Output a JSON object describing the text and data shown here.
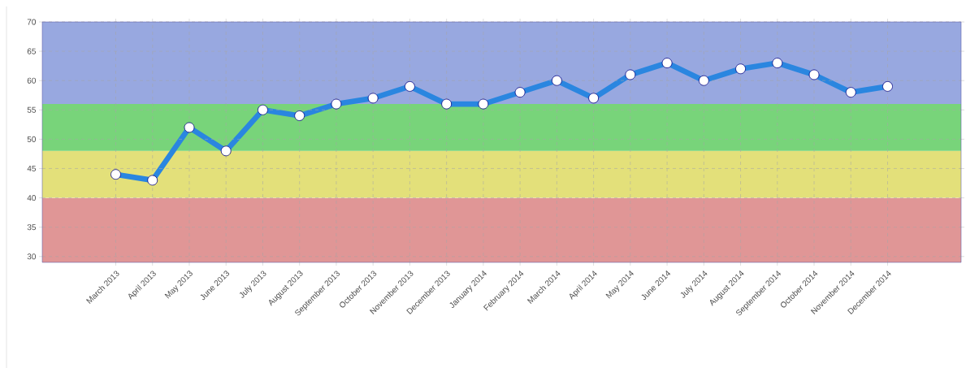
{
  "chart_data": {
    "type": "line",
    "categories": [
      "March 2013",
      "April 2013",
      "May 2013",
      "June 2013",
      "July 2013",
      "August 2013",
      "September 2013",
      "October 2013",
      "November 2013",
      "December 2013",
      "January 2014",
      "February 2014",
      "March 2014",
      "April 2014",
      "May 2014",
      "June 2014",
      "July 2014",
      "August 2014",
      "September 2014",
      "October 2014",
      "November 2014",
      "December 2014"
    ],
    "values": [
      44,
      43,
      52,
      48,
      55,
      54,
      56,
      57,
      59,
      56,
      56,
      58,
      60,
      57,
      61,
      63,
      60,
      62,
      63,
      61,
      58,
      59
    ],
    "color": "#2a86e0",
    "marker": "circle",
    "ylim": [
      29,
      70
    ],
    "yticks": [
      30,
      35,
      40,
      45,
      50,
      55,
      60,
      65,
      70
    ],
    "grid": true,
    "bands": [
      {
        "axis": "y",
        "from": 29,
        "to": 40,
        "color": "#e09696"
      },
      {
        "axis": "y",
        "from": 40,
        "to": 48,
        "color": "#e3e07a"
      },
      {
        "axis": "y",
        "from": 48,
        "to": 56,
        "color": "#78d47a"
      },
      {
        "axis": "y",
        "from": 56,
        "to": 70,
        "color": "#98a8e0"
      }
    ]
  }
}
